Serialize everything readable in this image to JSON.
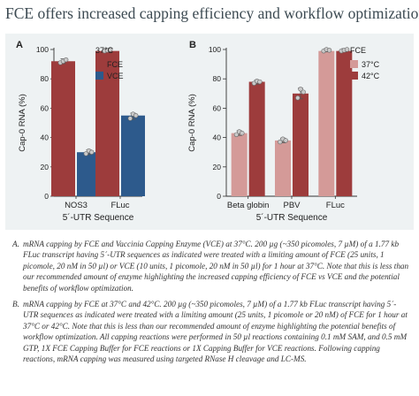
{
  "title": "FCE offers increased capping efficiency and workflow optimization",
  "colors": {
    "fce": "#9d3c3c",
    "vce": "#2d5a8c",
    "fce_light": "#d49a98",
    "panel_bg": "#eef2f3"
  },
  "chart_data": [
    {
      "type": "bar",
      "panel_label": "A",
      "categories": [
        "NOS3",
        "FLuc"
      ],
      "series": [
        {
          "name": "FCE",
          "values": [
            92,
            99
          ]
        },
        {
          "name": "VCE",
          "values": [
            30,
            55
          ]
        }
      ],
      "points": {
        "FCE": [
          [
            91,
            92,
            93
          ],
          [
            99,
            99.5,
            100
          ]
        ],
        "VCE": [
          [
            29,
            31,
            30
          ],
          [
            53,
            56,
            55
          ]
        ]
      },
      "legend_title": "37°C",
      "legend_position": "top-right",
      "xlabel": "5´-UTR Sequence",
      "ylabel": "Cap-0 RNA (%)",
      "ylim": [
        0,
        100
      ],
      "yticks": [
        "0",
        "20",
        "40",
        "60",
        "80",
        "100"
      ]
    },
    {
      "type": "bar",
      "panel_label": "B",
      "categories": [
        "Beta globin",
        "PBV",
        "FLuc"
      ],
      "series": [
        {
          "name": "37°C",
          "values": [
            43,
            38,
            99
          ]
        },
        {
          "name": "42°C",
          "values": [
            78,
            70,
            99
          ]
        }
      ],
      "points": {
        "37°C": [
          [
            42,
            44,
            43
          ],
          [
            37,
            39,
            38
          ],
          [
            99,
            100,
            99.5
          ]
        ],
        "42°C": [
          [
            77,
            78.5,
            78
          ],
          [
            67,
            73,
            71
          ],
          [
            99,
            99.5,
            100
          ]
        ]
      },
      "legend_title": "FCE",
      "legend_position": "top-right",
      "xlabel": "5´-UTR Sequence",
      "ylabel": "Cap-0 RNA (%)",
      "ylim": [
        0,
        100
      ],
      "yticks": [
        "0",
        "20",
        "40",
        "60",
        "80",
        "100"
      ]
    }
  ],
  "captions": [
    {
      "letter": "A.",
      "text": "mRNA capping by FCE and Vaccinia Capping Enzyme (VCE) at 37°C. 200 µg (~350 picomoles, 7 µM) of a 1.77 kb FLuc transcript having 5´-UTR sequences as indicated were treated with a limiting amount of FCE (25 units, 1 picomole, 20 nM in 50 µl) or VCE (10 units, 1 picomole, 20 nM in 50 µl) for 1 hour at 37°C. Note that this is less than our recommended amount of enzyme highlighting the increased capping efficiency of FCE vs VCE and the potential benefits of workflow optimization."
    },
    {
      "letter": "B.",
      "text": "mRNA capping by FCE at 37°C and 42°C. 200 µg (~350 picomoles, 7 µM) of a 1.77 kb FLuc transcript having 5´-UTR sequences as indicated were treated with a limiting amount (25 units, 1 picomole or 20 nM) of FCE for 1 hour at 37°C or 42°C. Note that this is less than our recommended amount of enzyme highlighting the potential benefits of workflow optimization. All capping reactions were performed in 50 µl reactions containing 0.1 mM SAM, and 0.5 mM GTP, 1X FCE Capping Buffer for FCE reactions or 1X Capping Buffer for VCE reactions. Following capping reactions, mRNA capping was measured using targeted RNase H cleavage and LC-MS."
    }
  ]
}
